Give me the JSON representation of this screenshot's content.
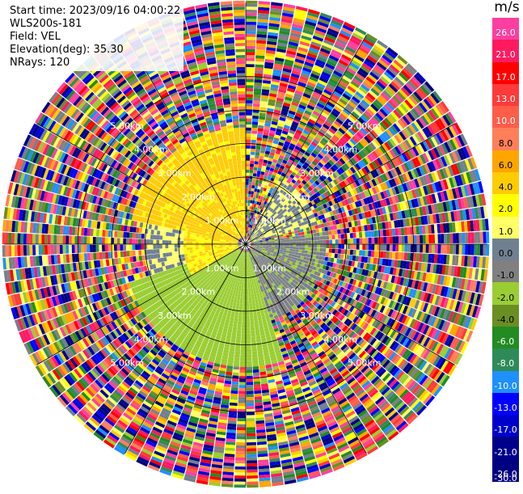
{
  "info": {
    "start_time": "Start time: 2023/09/16 04:00:22",
    "instrument": "WLS200s-181",
    "field": "Field: VEL",
    "elevation": "Elevation(deg): 35.30",
    "nrays": "NRays: 120"
  },
  "colorbar": {
    "unit": "m/s",
    "ticks": [
      "26.0",
      "21.0",
      "17.0",
      "13.0",
      "10.0",
      "8.0",
      "6.0",
      "4.0",
      "2.0",
      "1.0",
      "0.0",
      "-1.0",
      "-2.0",
      "-4.0",
      "-6.0",
      "-8.0",
      "-10.0",
      "-13.0",
      "-17.0",
      "-21.0",
      "-26.0",
      "-30.0"
    ],
    "colors": [
      "#ff3fa0",
      "#ff1a60",
      "#ff0000",
      "#ff3a3a",
      "#ff5c4a",
      "#ff7f5a",
      "#ffa500",
      "#ffcc00",
      "#ffff00",
      "#ffff66",
      "#708090",
      "#808080",
      "#9acd32",
      "#6b8e23",
      "#228b22",
      "#2e8b57",
      "#1e90ff",
      "#0000ff",
      "#0000cd",
      "#00008b",
      "#000080"
    ],
    "tick_colors": [
      "#ffffff",
      "#ffffff",
      "#ffffff",
      "#ffffff",
      "#ffffff",
      "#000000",
      "#000000",
      "#000000",
      "#000000",
      "#000000",
      "#000000",
      "#000000",
      "#000000",
      "#000000",
      "#ffffff",
      "#ffffff",
      "#ffffff",
      "#ffffff",
      "#ffffff",
      "#ffffff",
      "#ffffff",
      "#ffffff"
    ]
  },
  "chart_data": {
    "type": "ppi",
    "field": "VEL",
    "units": "m/s",
    "nrays": 120,
    "elevation_deg": 35.3,
    "range_ring_labels": [
      "1.00km",
      "2.00km",
      "3.00km",
      "4.00km",
      "5.00km"
    ],
    "range_rings_km": [
      1,
      2,
      3,
      4,
      5
    ],
    "max_range_km": 7.2,
    "vmin": -30,
    "vmax": 30,
    "regions": [
      {
        "sector_deg": [
          280,
          360
        ],
        "range_km": [
          0.2,
          3.4
        ],
        "velocity_ms": 2.5
      },
      {
        "sector_deg": [
          240,
          280
        ],
        "range_km": [
          0.2,
          1.8
        ],
        "velocity_ms": 2.0
      },
      {
        "sector_deg": [
          25,
          75
        ],
        "range_km": [
          0.2,
          2.2
        ],
        "velocity_ms": 0.0
      },
      {
        "sector_deg": [
          80,
          160
        ],
        "range_km": [
          0.2,
          2.4
        ],
        "velocity_ms": -1.5
      },
      {
        "sector_deg": [
          160,
          250
        ],
        "range_km": [
          0.2,
          3.6
        ],
        "velocity_ms": -3.0
      },
      {
        "sector_deg": [
          250,
          290
        ],
        "range_km": [
          1.8,
          3.0
        ],
        "velocity_ms": 0.0
      },
      {
        "sector_deg": [
          0,
          360
        ],
        "range_km": [
          3.6,
          7.2
        ],
        "velocity_ms": "noise"
      }
    ]
  }
}
